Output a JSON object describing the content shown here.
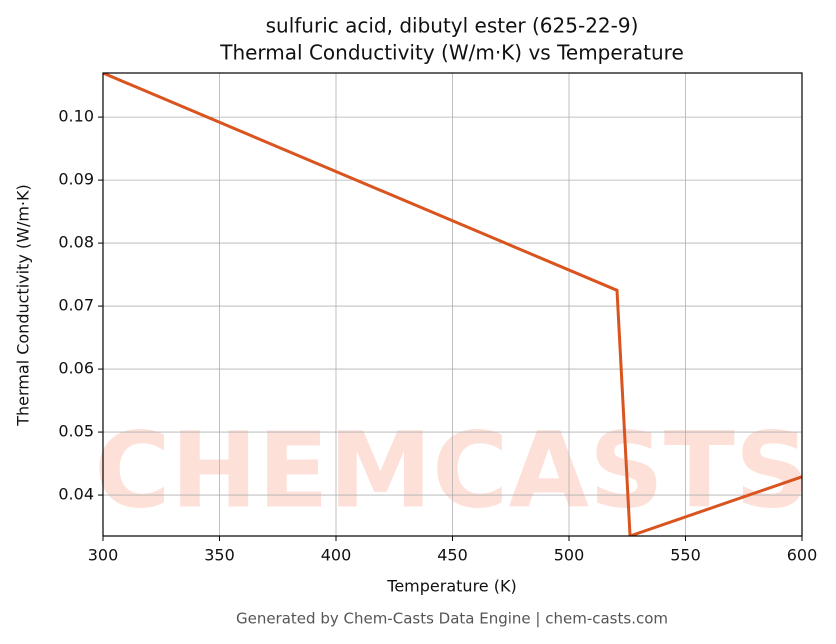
{
  "chart_data": {
    "type": "line",
    "title": "sulfuric acid, dibutyl ester (625-22-9)",
    "subtitle": "Thermal Conductivity (W/m·K) vs Temperature",
    "x_label": "Temperature (K)",
    "y_label": "Thermal Conductivity (W/m·K)",
    "watermark": "CHEMCASTS",
    "footer": "Generated by Chem-Casts Data Engine | chem-casts.com",
    "x": [
      300,
      520.6,
      526.2,
      600
    ],
    "series": [
      {
        "name": "Thermal Conductivity",
        "color": "#d9541e",
        "values": [
          0.107,
          0.0725,
          0.0335,
          0.0429
        ]
      }
    ],
    "xlim": [
      300,
      600
    ],
    "ylim": [
      0.0335,
      0.107
    ],
    "xticks": [
      300,
      350,
      400,
      450,
      500,
      550,
      600
    ],
    "yticks": [
      0.04,
      0.05,
      0.06,
      0.07,
      0.08,
      0.09,
      {
        "value": 0.1,
        "label": "0.10"
      }
    ],
    "grid": true
  }
}
